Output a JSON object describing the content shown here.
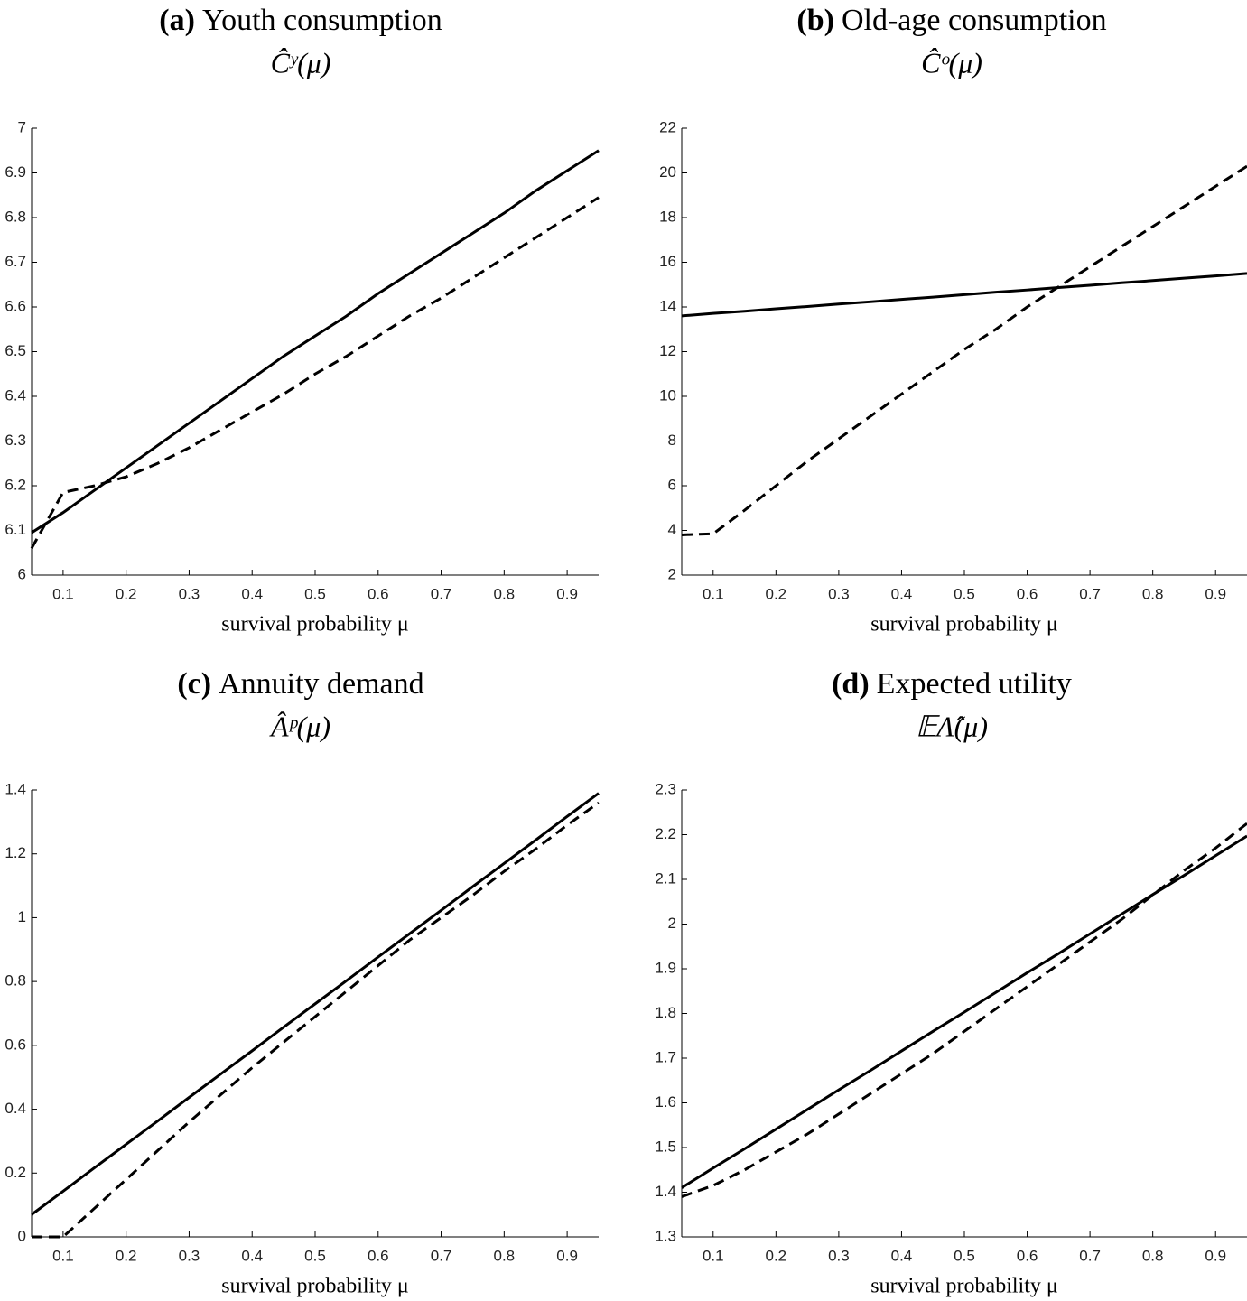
{
  "chart_data": [
    {
      "type": "line",
      "title_label": "(a)",
      "title": "Youth consumption",
      "subtitle": "Ĉʸ(μ)",
      "xlabel": "survival probability μ",
      "x": [
        0.05,
        0.1,
        0.15,
        0.2,
        0.25,
        0.3,
        0.35,
        0.4,
        0.45,
        0.5,
        0.55,
        0.6,
        0.65,
        0.7,
        0.75,
        0.8,
        0.85,
        0.9,
        0.95
      ],
      "xlim": [
        0.05,
        0.95
      ],
      "xticks": [
        0.1,
        0.2,
        0.3,
        0.4,
        0.5,
        0.6,
        0.7,
        0.8,
        0.9
      ],
      "ylim": [
        6,
        7
      ],
      "yticks": [
        6,
        6.1,
        6.2,
        6.3,
        6.4,
        6.5,
        6.6,
        6.7,
        6.8,
        6.9,
        7
      ],
      "series": [
        {
          "style": "solid",
          "color": "#000000",
          "values": [
            6.095,
            6.14,
            6.19,
            6.24,
            6.29,
            6.34,
            6.39,
            6.44,
            6.49,
            6.535,
            6.58,
            6.63,
            6.675,
            6.72,
            6.765,
            6.81,
            6.86,
            6.905,
            6.95
          ]
        },
        {
          "style": "dashed",
          "color": "#000000",
          "values": [
            6.06,
            6.185,
            6.2,
            6.22,
            6.25,
            6.285,
            6.325,
            6.365,
            6.405,
            6.45,
            6.49,
            6.535,
            6.58,
            6.62,
            6.665,
            6.71,
            6.755,
            6.8,
            6.845
          ]
        }
      ]
    },
    {
      "type": "line",
      "title_label": "(b)",
      "title": "Old-age consumption",
      "subtitle": "Ĉᵒ(μ)",
      "xlabel": "survival probability μ",
      "x": [
        0.05,
        0.1,
        0.15,
        0.2,
        0.25,
        0.3,
        0.35,
        0.4,
        0.45,
        0.5,
        0.55,
        0.6,
        0.65,
        0.7,
        0.75,
        0.8,
        0.85,
        0.9,
        0.95
      ],
      "xlim": [
        0.05,
        0.95
      ],
      "xticks": [
        0.1,
        0.2,
        0.3,
        0.4,
        0.5,
        0.6,
        0.7,
        0.8,
        0.9
      ],
      "ylim": [
        2,
        22
      ],
      "yticks": [
        2,
        4,
        6,
        8,
        10,
        12,
        14,
        16,
        18,
        20,
        22
      ],
      "series": [
        {
          "style": "solid",
          "color": "#000000",
          "values": [
            13.6,
            13.71,
            13.81,
            13.92,
            14.02,
            14.13,
            14.23,
            14.34,
            14.44,
            14.55,
            14.66,
            14.76,
            14.87,
            14.97,
            15.08,
            15.18,
            15.29,
            15.39,
            15.5
          ]
        },
        {
          "style": "dashed",
          "color": "#000000",
          "values": [
            3.8,
            3.85,
            4.9,
            6.0,
            7.1,
            8.1,
            9.1,
            10.1,
            11.1,
            12.1,
            13.0,
            14.0,
            14.9,
            15.8,
            16.7,
            17.6,
            18.5,
            19.4,
            20.3
          ]
        }
      ]
    },
    {
      "type": "line",
      "title_label": "(c)",
      "title": "Annuity demand",
      "subtitle": "Âᵖ(μ)",
      "xlabel": "survival probability μ",
      "x": [
        0.05,
        0.1,
        0.15,
        0.2,
        0.25,
        0.3,
        0.35,
        0.4,
        0.45,
        0.5,
        0.55,
        0.6,
        0.65,
        0.7,
        0.75,
        0.8,
        0.85,
        0.9,
        0.95
      ],
      "xlim": [
        0.05,
        0.95
      ],
      "xticks": [
        0.1,
        0.2,
        0.3,
        0.4,
        0.5,
        0.6,
        0.7,
        0.8,
        0.9
      ],
      "ylim": [
        0,
        1.4
      ],
      "yticks": [
        0,
        0.2,
        0.4,
        0.6,
        0.8,
        1,
        1.2,
        1.4
      ],
      "series": [
        {
          "style": "solid",
          "color": "#000000",
          "values": [
            0.07,
            0.143,
            0.217,
            0.29,
            0.363,
            0.437,
            0.51,
            0.583,
            0.657,
            0.73,
            0.803,
            0.877,
            0.95,
            1.023,
            1.097,
            1.17,
            1.243,
            1.317,
            1.39
          ]
        },
        {
          "style": "dashed",
          "color": "#000000",
          "values": [
            0,
            0,
            0.09,
            0.18,
            0.27,
            0.36,
            0.445,
            0.53,
            0.61,
            0.69,
            0.77,
            0.85,
            0.93,
            1.0,
            1.07,
            1.145,
            1.215,
            1.29,
            1.36
          ]
        }
      ]
    },
    {
      "type": "line",
      "title_label": "(d)",
      "title": "Expected utility",
      "subtitle": "𝔼Λ̂(μ)",
      "xlabel": "survival probability μ",
      "x": [
        0.05,
        0.1,
        0.15,
        0.2,
        0.25,
        0.3,
        0.35,
        0.4,
        0.45,
        0.5,
        0.55,
        0.6,
        0.65,
        0.7,
        0.75,
        0.8,
        0.85,
        0.9,
        0.95
      ],
      "xlim": [
        0.05,
        0.95
      ],
      "xticks": [
        0.1,
        0.2,
        0.3,
        0.4,
        0.5,
        0.6,
        0.7,
        0.8,
        0.9
      ],
      "ylim": [
        1.3,
        2.3
      ],
      "yticks": [
        1.3,
        1.4,
        1.5,
        1.6,
        1.7,
        1.8,
        1.9,
        2,
        2.1,
        2.2,
        2.3
      ],
      "series": [
        {
          "style": "solid",
          "color": "#000000",
          "values": [
            1.41,
            1.454,
            1.497,
            1.541,
            1.585,
            1.629,
            1.672,
            1.716,
            1.76,
            1.803,
            1.847,
            1.891,
            1.934,
            1.978,
            2.022,
            2.066,
            2.109,
            2.153,
            2.197
          ]
        },
        {
          "style": "dashed",
          "color": "#000000",
          "values": [
            1.39,
            1.415,
            1.45,
            1.49,
            1.53,
            1.575,
            1.62,
            1.665,
            1.71,
            1.76,
            1.81,
            1.86,
            1.91,
            1.96,
            2.01,
            2.065,
            2.12,
            2.17,
            2.225
          ]
        }
      ]
    }
  ]
}
